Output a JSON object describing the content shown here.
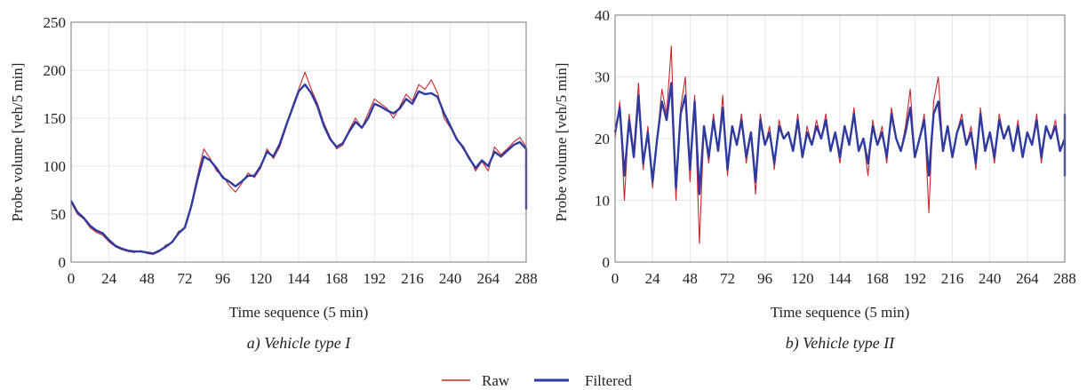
{
  "colors": {
    "raw": "#c8282d",
    "filtered": "#2e3a9f"
  },
  "legend": [
    {
      "key": "raw",
      "label": "Raw"
    },
    {
      "key": "filtered",
      "label": "Filtered"
    }
  ],
  "chart_data": [
    {
      "type": "line",
      "caption": "a) Vehicle type I",
      "xlabel": "Time sequence (5 min)",
      "ylabel": "Probe volume [veh/5 min]",
      "xlim": [
        0,
        288
      ],
      "ylim": [
        0,
        250
      ],
      "xticks": [
        0,
        24,
        48,
        72,
        96,
        120,
        144,
        168,
        192,
        216,
        240,
        264,
        288
      ],
      "yticks": [
        0,
        50,
        100,
        150,
        200,
        250
      ],
      "grid": true,
      "x_step": 4,
      "series": [
        {
          "key": "raw",
          "name": "Raw",
          "values": [
            62,
            50,
            45,
            36,
            31,
            28,
            21,
            16,
            13,
            11,
            10,
            12,
            9,
            8,
            11,
            18,
            20,
            32,
            35,
            60,
            90,
            118,
            108,
            95,
            90,
            80,
            73,
            82,
            93,
            88,
            98,
            118,
            108,
            120,
            140,
            162,
            180,
            198,
            180,
            165,
            145,
            130,
            118,
            122,
            138,
            150,
            140,
            155,
            170,
            165,
            160,
            150,
            162,
            175,
            168,
            185,
            180,
            190,
            176,
            150,
            140,
            130,
            118,
            110,
            95,
            105,
            95,
            120,
            112,
            118,
            125,
            130,
            120,
            110,
            115,
            90,
            72,
            55
          ]
        },
        {
          "key": "filtered",
          "name": "Filtered",
          "values": [
            64,
            52,
            46,
            38,
            33,
            30,
            23,
            17,
            14,
            12,
            11,
            11,
            10,
            9,
            12,
            16,
            21,
            30,
            36,
            58,
            86,
            110,
            106,
            98,
            88,
            84,
            79,
            84,
            90,
            90,
            100,
            115,
            110,
            123,
            142,
            160,
            178,
            185,
            176,
            162,
            142,
            128,
            120,
            124,
            136,
            146,
            140,
            150,
            165,
            162,
            158,
            155,
            160,
            170,
            165,
            178,
            175,
            176,
            172,
            155,
            142,
            128,
            120,
            108,
            98,
            106,
            100,
            115,
            110,
            116,
            122,
            125,
            118,
            112,
            112,
            95,
            78,
            55
          ]
        }
      ]
    },
    {
      "type": "line",
      "caption": "b) Vehicle type II",
      "xlabel": "Time sequence (5 min)",
      "ylabel": "Probe volume [veh/5 min]",
      "xlim": [
        0,
        288
      ],
      "ylim": [
        0,
        40
      ],
      "xticks": [
        0,
        24,
        48,
        72,
        96,
        120,
        144,
        168,
        192,
        216,
        240,
        264,
        288
      ],
      "yticks": [
        0,
        10,
        20,
        30,
        40
      ],
      "grid": true,
      "x_step": 3,
      "series": [
        {
          "key": "raw",
          "name": "Raw",
          "values": [
            20,
            26,
            10,
            24,
            18,
            29,
            15,
            22,
            12,
            20,
            28,
            24,
            35,
            10,
            25,
            30,
            13,
            27,
            3,
            22,
            16,
            24,
            18,
            27,
            14,
            22,
            19,
            24,
            16,
            21,
            11,
            24,
            19,
            22,
            15,
            23,
            20,
            21,
            18,
            24,
            17,
            22,
            19,
            23,
            20,
            24,
            18,
            21,
            16,
            22,
            19,
            25,
            18,
            20,
            14,
            23,
            19,
            22,
            16,
            25,
            20,
            18,
            22,
            28,
            17,
            20,
            24,
            8,
            26,
            30,
            18,
            22,
            17,
            21,
            24,
            19,
            22,
            15,
            25,
            18,
            21,
            16,
            24,
            20,
            22,
            18,
            23,
            17,
            21,
            19,
            24,
            16,
            22,
            20,
            23,
            18,
            20,
            10,
            22,
            25
          ]
        },
        {
          "key": "filtered",
          "name": "Filtered",
          "values": [
            21,
            25,
            14,
            23,
            17,
            27,
            16,
            21,
            13,
            20,
            26,
            23,
            29,
            12,
            24,
            27,
            15,
            26,
            11,
            22,
            17,
            23,
            18,
            25,
            15,
            22,
            19,
            23,
            17,
            21,
            13,
            23,
            19,
            21,
            16,
            22,
            20,
            21,
            18,
            23,
            17,
            21,
            19,
            22,
            20,
            23,
            18,
            21,
            17,
            22,
            19,
            24,
            18,
            20,
            16,
            22,
            19,
            21,
            17,
            24,
            20,
            18,
            21,
            25,
            17,
            20,
            23,
            14,
            24,
            26,
            18,
            22,
            17,
            21,
            23,
            19,
            21,
            16,
            24,
            18,
            21,
            17,
            23,
            20,
            22,
            18,
            22,
            17,
            21,
            19,
            23,
            17,
            22,
            20,
            22,
            18,
            20,
            14,
            22,
            24
          ]
        }
      ]
    }
  ]
}
